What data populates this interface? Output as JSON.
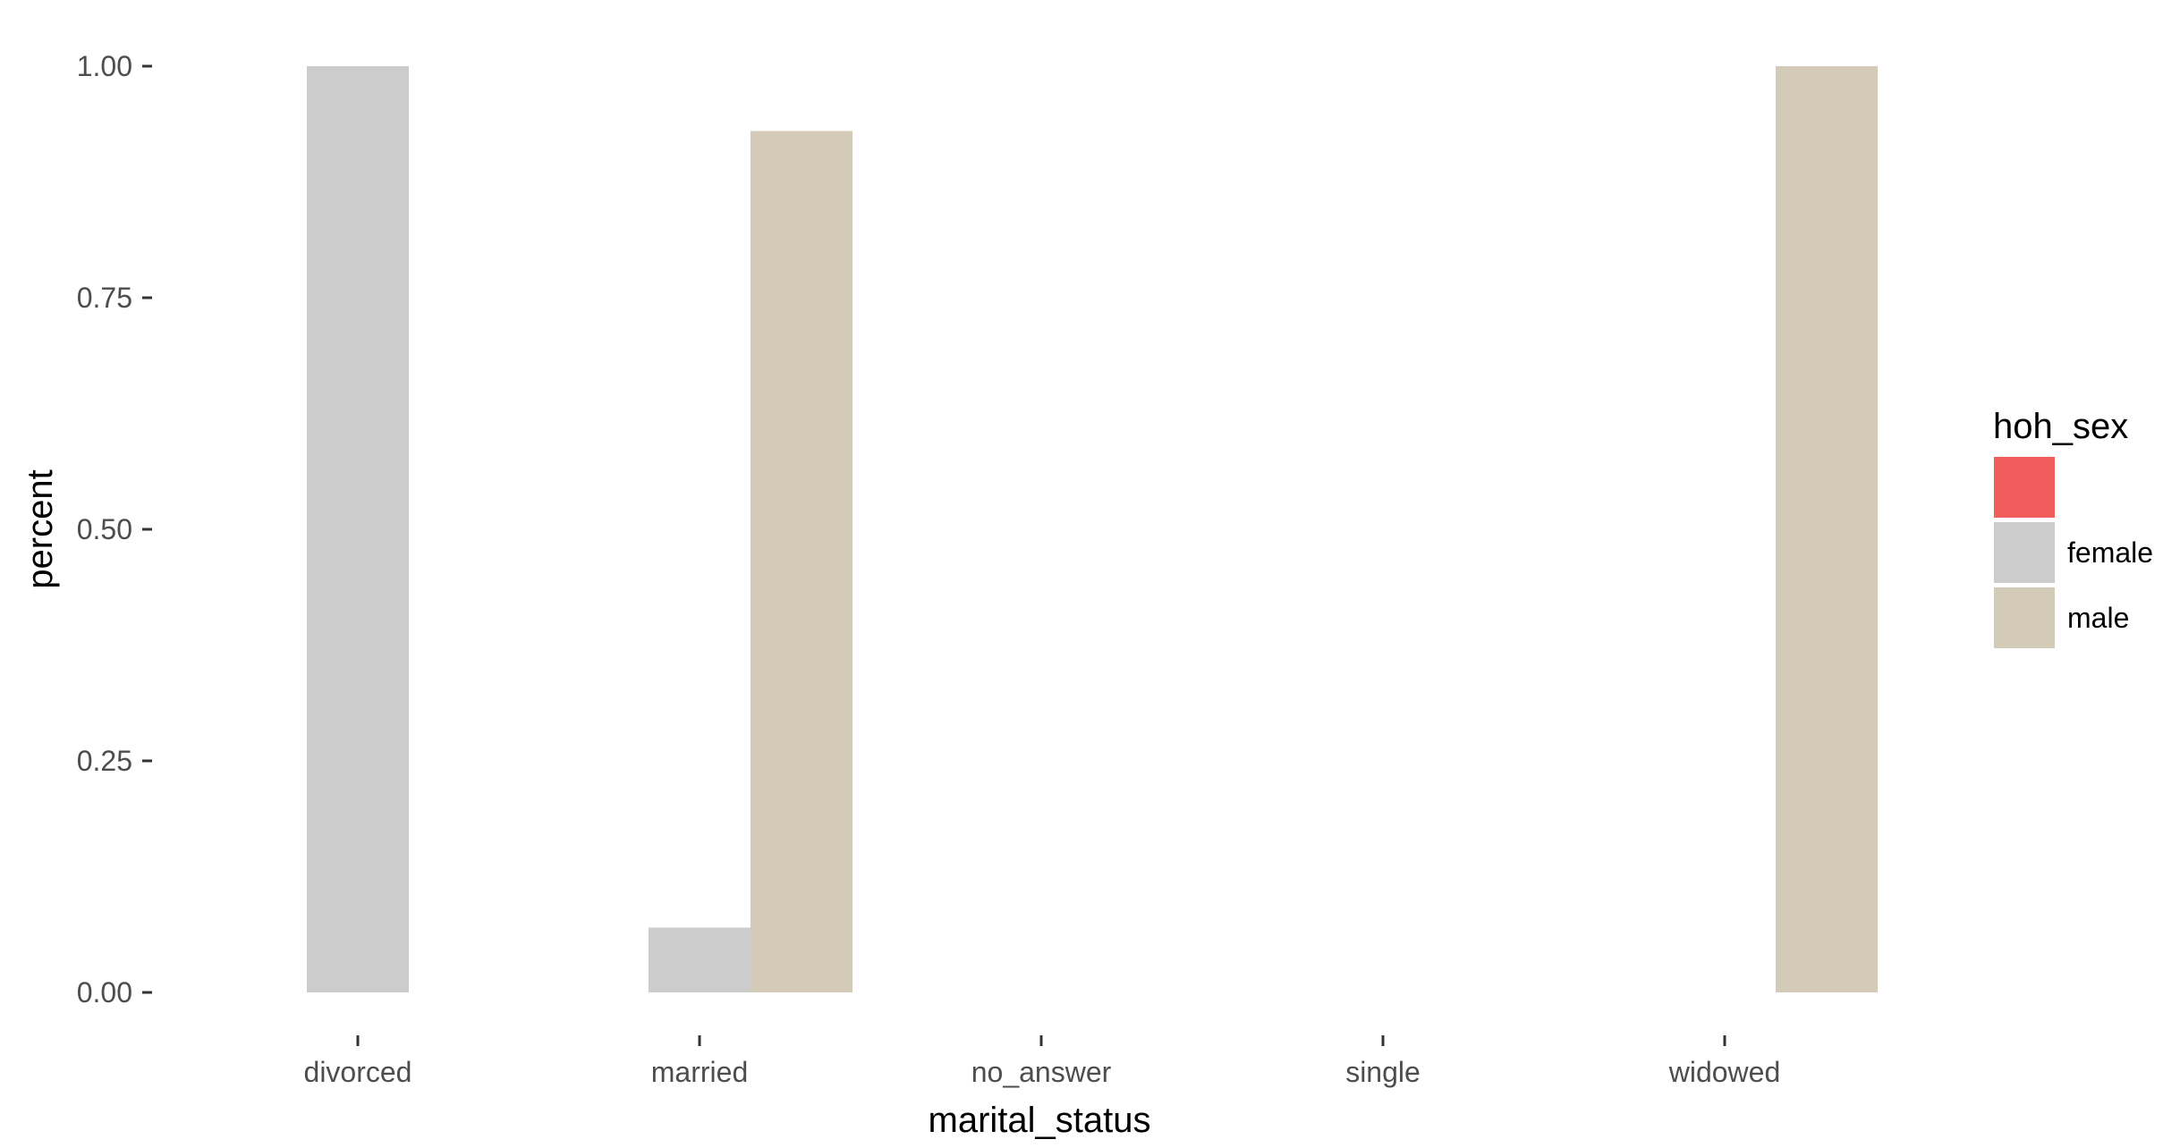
{
  "chart_data": {
    "type": "bar",
    "title": "",
    "xlabel": "marital_status",
    "ylabel": "percent",
    "categories": [
      "divorced",
      "married",
      "no_answer",
      "single",
      "widowed"
    ],
    "ylim": [
      0,
      1
    ],
    "yticks": [
      "0.00",
      "0.25",
      "0.50",
      "0.75",
      "1.00"
    ],
    "ytick_values": [
      0,
      0.25,
      0.5,
      0.75,
      1.0
    ],
    "grid": false,
    "legend": {
      "title": "hoh_sex",
      "position": "right",
      "entries": [
        {
          "label": "",
          "color": "#F15C5C"
        },
        {
          "label": "female",
          "color": "#CCCCCC"
        },
        {
          "label": "male",
          "color": "#D3CBB8"
        }
      ]
    },
    "series": [
      {
        "name": "",
        "color": "#F15C5C",
        "values": [
          0,
          0,
          0,
          0,
          0
        ]
      },
      {
        "name": "female",
        "color": "#CCCCCC",
        "values": [
          1.0,
          0.07,
          0,
          0,
          0
        ]
      },
      {
        "name": "male",
        "color": "#D3CBB8",
        "values": [
          0,
          0.93,
          0,
          0,
          1.0
        ]
      }
    ]
  }
}
